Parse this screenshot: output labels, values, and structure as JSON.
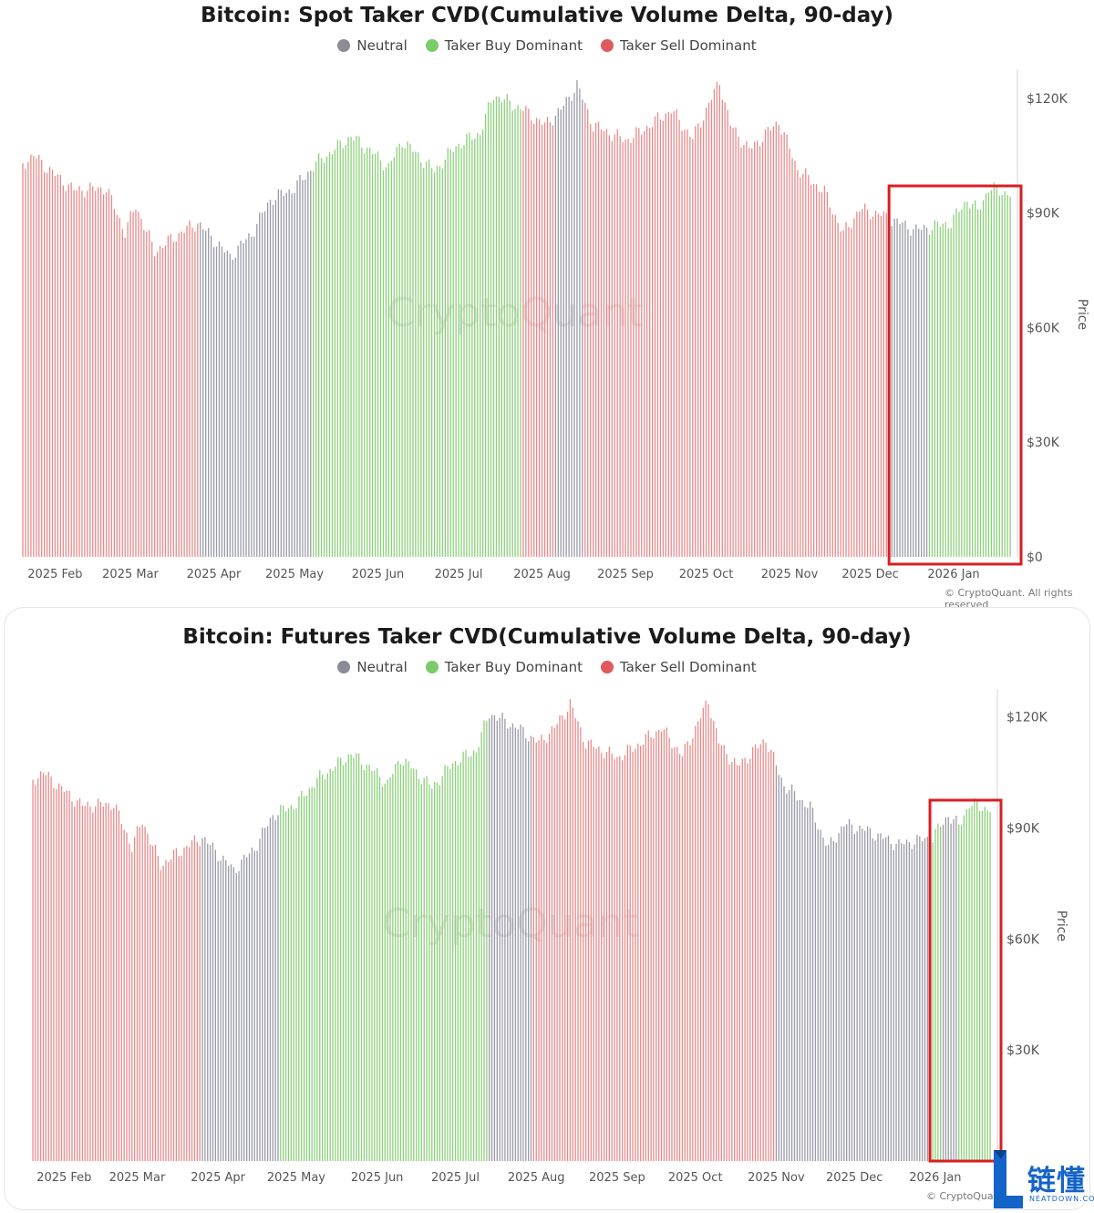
{
  "legend": {
    "neutral": "Neutral",
    "buy": "Taker Buy Dominant",
    "sell": "Taker Sell Dominant"
  },
  "colors": {
    "neutral": "#9a9aa8",
    "buy": "#8cd07a",
    "sell": "#e98a8a",
    "highlight": "#d81e23",
    "legend_neutral": "#8c8c96",
    "legend_buy": "#7ccb6b",
    "legend_sell": "#e0595c"
  },
  "watermark": "CryptoQuant",
  "branding": {
    "logo_text": "链懂",
    "logo_sub": "NEATDOWN.COM"
  },
  "chart_data": [
    {
      "type": "bar",
      "title": "Bitcoin: Spot Taker CVD(Cumulative Volume Delta, 90-day)",
      "ylabel": "Price",
      "ylim": [
        0,
        130000
      ],
      "y_ticks": [
        "$120K",
        "$90K",
        "$60K",
        "$30K",
        "$0"
      ],
      "y_tick_values": [
        120000,
        90000,
        60000,
        30000,
        0
      ],
      "x_ticks": [
        "2025 Feb",
        "2025 Mar",
        "2025 Apr",
        "2025 May",
        "2025 Jun",
        "2025 Jul",
        "2025 Aug",
        "2025 Sep",
        "2025 Oct",
        "2025 Nov",
        "2025 Dec",
        "2026 Jan"
      ],
      "x_range": [
        "2025-01-20",
        "2026-01-22"
      ],
      "credit": "© CryptoQuant. All rights reserved",
      "highlight": {
        "from": "2025-12-09",
        "to": "2026-01-22"
      },
      "price_keypoints": [
        [
          "2025-01-20",
          103000
        ],
        [
          "2025-01-24",
          105000
        ],
        [
          "2025-02-01",
          100000
        ],
        [
          "2025-02-08",
          96000
        ],
        [
          "2025-02-20",
          96500
        ],
        [
          "2025-02-27",
          85000
        ],
        [
          "2025-03-03",
          92000
        ],
        [
          "2025-03-10",
          80000
        ],
        [
          "2025-03-20",
          85000
        ],
        [
          "2025-03-26",
          87500
        ],
        [
          "2025-04-07",
          78500
        ],
        [
          "2025-04-15",
          84500
        ],
        [
          "2025-04-22",
          93500
        ],
        [
          "2025-05-01",
          96500
        ],
        [
          "2025-05-09",
          103000
        ],
        [
          "2025-05-22",
          110000
        ],
        [
          "2025-05-28",
          107000
        ],
        [
          "2025-06-05",
          102000
        ],
        [
          "2025-06-10",
          109000
        ],
        [
          "2025-06-22",
          101000
        ],
        [
          "2025-06-30",
          107500
        ],
        [
          "2025-07-09",
          111000
        ],
        [
          "2025-07-14",
          121000
        ],
        [
          "2025-07-25",
          117000
        ],
        [
          "2025-08-02",
          113000
        ],
        [
          "2025-08-08",
          117000
        ],
        [
          "2025-08-14",
          123500
        ],
        [
          "2025-08-20",
          113000
        ],
        [
          "2025-09-01",
          109000
        ],
        [
          "2025-09-06",
          111000
        ],
        [
          "2025-09-18",
          117000
        ],
        [
          "2025-09-26",
          109500
        ],
        [
          "2025-10-06",
          124500
        ],
        [
          "2025-10-10",
          113000
        ],
        [
          "2025-10-17",
          106500
        ],
        [
          "2025-10-28",
          114000
        ],
        [
          "2025-11-04",
          101500
        ],
        [
          "2025-11-14",
          95500
        ],
        [
          "2025-11-21",
          84500
        ],
        [
          "2025-11-27",
          91000
        ],
        [
          "2025-12-05",
          89500
        ],
        [
          "2025-12-18",
          85500
        ],
        [
          "2025-12-31",
          87500
        ],
        [
          "2026-01-06",
          93500
        ],
        [
          "2026-01-10",
          90500
        ],
        [
          "2026-01-14",
          96500
        ],
        [
          "2026-01-22",
          95000
        ]
      ],
      "segments": [
        [
          "2025-01-20",
          "2025-03-26",
          "sell"
        ],
        [
          "2025-03-27",
          "2025-04-23",
          "neutral"
        ],
        [
          "2025-04-24",
          "2025-05-07",
          "neutral"
        ],
        [
          "2025-05-08",
          "2025-07-08",
          "buy"
        ],
        [
          "2025-07-09",
          "2025-07-24",
          "buy"
        ],
        [
          "2025-07-25",
          "2025-08-05",
          "sell"
        ],
        [
          "2025-08-06",
          "2025-08-16",
          "neutral"
        ],
        [
          "2025-08-17",
          "2025-12-07",
          "sell"
        ],
        [
          "2025-12-08",
          "2025-12-22",
          "neutral"
        ],
        [
          "2025-12-23",
          "2026-01-22",
          "buy"
        ]
      ]
    },
    {
      "type": "bar",
      "title": "Bitcoin: Futures Taker CVD(Cumulative Volume Delta, 90-day)",
      "ylabel": "Price",
      "ylim": [
        0,
        130000
      ],
      "y_ticks": [
        "$120K",
        "$90K",
        "$60K",
        "$30K"
      ],
      "y_tick_values": [
        120000,
        90000,
        60000,
        30000
      ],
      "x_ticks": [
        "2025 Feb",
        "2025 Mar",
        "2025 Apr",
        "2025 May",
        "2025 Jun",
        "2025 Jul",
        "2025 Aug",
        "2025 Sep",
        "2025 Oct",
        "2025 Nov",
        "2025 Dec",
        "2026 Jan"
      ],
      "x_range": [
        "2025-01-20",
        "2026-01-22"
      ],
      "credit": "© CryptoQuan",
      "highlight": {
        "from": "2025-12-31",
        "to": "2026-01-22"
      },
      "price_keypoints": [
        [
          "2025-01-20",
          103000
        ],
        [
          "2025-01-24",
          105000
        ],
        [
          "2025-02-01",
          100000
        ],
        [
          "2025-02-08",
          96000
        ],
        [
          "2025-02-20",
          96500
        ],
        [
          "2025-02-27",
          85000
        ],
        [
          "2025-03-03",
          92000
        ],
        [
          "2025-03-10",
          80000
        ],
        [
          "2025-03-20",
          85000
        ],
        [
          "2025-03-26",
          87500
        ],
        [
          "2025-04-07",
          78500
        ],
        [
          "2025-04-15",
          84500
        ],
        [
          "2025-04-22",
          93500
        ],
        [
          "2025-05-01",
          96500
        ],
        [
          "2025-05-09",
          103000
        ],
        [
          "2025-05-22",
          110000
        ],
        [
          "2025-05-28",
          107000
        ],
        [
          "2025-06-05",
          102000
        ],
        [
          "2025-06-10",
          109000
        ],
        [
          "2025-06-22",
          101000
        ],
        [
          "2025-06-30",
          107500
        ],
        [
          "2025-07-09",
          111000
        ],
        [
          "2025-07-14",
          121000
        ],
        [
          "2025-07-25",
          117000
        ],
        [
          "2025-08-02",
          113000
        ],
        [
          "2025-08-08",
          117000
        ],
        [
          "2025-08-14",
          123500
        ],
        [
          "2025-08-20",
          113000
        ],
        [
          "2025-09-01",
          109000
        ],
        [
          "2025-09-06",
          111000
        ],
        [
          "2025-09-18",
          117000
        ],
        [
          "2025-09-26",
          109500
        ],
        [
          "2025-10-06",
          124500
        ],
        [
          "2025-10-10",
          113000
        ],
        [
          "2025-10-17",
          106500
        ],
        [
          "2025-10-28",
          114000
        ],
        [
          "2025-11-04",
          101500
        ],
        [
          "2025-11-14",
          95500
        ],
        [
          "2025-11-21",
          84500
        ],
        [
          "2025-11-27",
          91000
        ],
        [
          "2025-12-05",
          89500
        ],
        [
          "2025-12-18",
          85500
        ],
        [
          "2025-12-31",
          87500
        ],
        [
          "2026-01-06",
          93500
        ],
        [
          "2026-01-10",
          90500
        ],
        [
          "2026-01-14",
          96500
        ],
        [
          "2026-01-22",
          95000
        ]
      ],
      "segments": [
        [
          "2025-01-20",
          "2025-03-25",
          "sell"
        ],
        [
          "2025-03-26",
          "2025-04-24",
          "neutral"
        ],
        [
          "2025-04-25",
          "2025-06-11",
          "buy"
        ],
        [
          "2025-06-12",
          "2025-06-20",
          "buy"
        ],
        [
          "2025-06-21",
          "2025-07-13",
          "buy"
        ],
        [
          "2025-07-14",
          "2025-07-30",
          "neutral"
        ],
        [
          "2025-07-31",
          "2025-10-31",
          "sell"
        ],
        [
          "2025-11-01",
          "2025-12-01",
          "neutral"
        ],
        [
          "2025-12-02",
          "2025-12-29",
          "neutral"
        ],
        [
          "2025-12-30",
          "2026-01-03",
          "buy"
        ],
        [
          "2026-01-04",
          "2026-01-09",
          "neutral"
        ],
        [
          "2026-01-10",
          "2026-01-22",
          "buy"
        ]
      ]
    }
  ]
}
